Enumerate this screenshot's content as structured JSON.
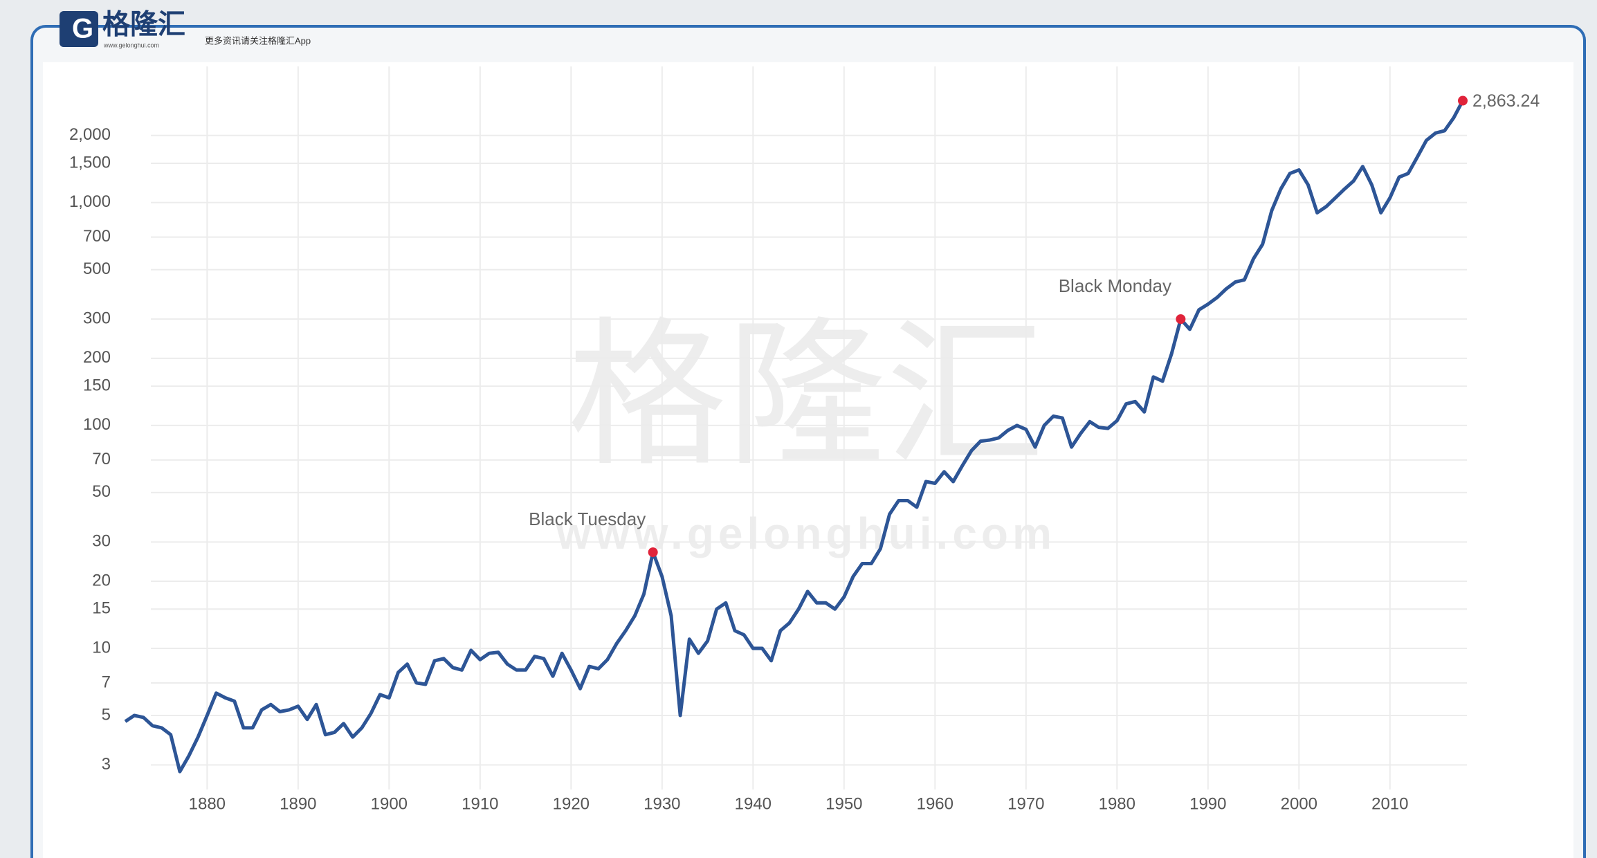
{
  "header": {
    "logo": "格隆汇",
    "logo_sub": "www.gelonghui.com",
    "tagline": "更多资讯请关注格隆汇App"
  },
  "watermark": {
    "text": "格隆汇",
    "url": "www.gelonghui.com"
  },
  "chart_data": {
    "type": "line",
    "color": "#2d5596",
    "marker_color": "#e0233a",
    "log_y": true,
    "grid": true,
    "x": [
      1871,
      1872,
      1873,
      1874,
      1875,
      1876,
      1877,
      1878,
      1879,
      1880,
      1881,
      1882,
      1883,
      1884,
      1885,
      1886,
      1887,
      1888,
      1889,
      1890,
      1891,
      1892,
      1893,
      1894,
      1895,
      1896,
      1897,
      1898,
      1899,
      1900,
      1901,
      1902,
      1903,
      1904,
      1905,
      1906,
      1907,
      1908,
      1909,
      1910,
      1911,
      1912,
      1913,
      1914,
      1915,
      1916,
      1917,
      1918,
      1919,
      1920,
      1921,
      1922,
      1923,
      1924,
      1925,
      1926,
      1927,
      1928,
      1929,
      1930,
      1931,
      1932,
      1933,
      1934,
      1935,
      1936,
      1937,
      1938,
      1939,
      1940,
      1941,
      1942,
      1943,
      1944,
      1945,
      1946,
      1947,
      1948,
      1949,
      1950,
      1951,
      1952,
      1953,
      1954,
      1955,
      1956,
      1957,
      1958,
      1959,
      1960,
      1961,
      1962,
      1963,
      1964,
      1965,
      1966,
      1967,
      1968,
      1969,
      1970,
      1971,
      1972,
      1973,
      1974,
      1975,
      1976,
      1977,
      1978,
      1979,
      1980,
      1981,
      1982,
      1983,
      1984,
      1985,
      1986,
      1987,
      1988,
      1989,
      1990,
      1991,
      1992,
      1993,
      1994,
      1995,
      1996,
      1997,
      1998,
      1999,
      2000,
      2001,
      2002,
      2003,
      2004,
      2005,
      2006,
      2007,
      2008,
      2009,
      2010,
      2011,
      2012,
      2013,
      2014,
      2015,
      2016,
      2017,
      2018
    ],
    "values": [
      4.7,
      5.0,
      4.9,
      4.5,
      4.4,
      4.1,
      2.8,
      3.3,
      4.0,
      5.0,
      6.3,
      6.0,
      5.8,
      4.4,
      4.4,
      5.3,
      5.6,
      5.2,
      5.3,
      5.5,
      4.8,
      5.6,
      4.1,
      4.2,
      4.6,
      4.0,
      4.4,
      5.1,
      6.2,
      6.0,
      7.8,
      8.5,
      7.0,
      6.9,
      8.8,
      9.0,
      8.2,
      8.0,
      9.8,
      8.9,
      9.5,
      9.6,
      8.5,
      8.0,
      8.0,
      9.2,
      9.0,
      7.5,
      9.5,
      8.0,
      6.6,
      8.3,
      8.1,
      8.9,
      10.5,
      12.0,
      14.0,
      17.5,
      27.0,
      21.0,
      14.0,
      5.0,
      11.0,
      9.5,
      10.8,
      15.0,
      16.0,
      12.0,
      11.5,
      10.0,
      10.0,
      8.8,
      12.0,
      13.0,
      15.0,
      18.0,
      16.0,
      16.0,
      15.0,
      17.0,
      21.0,
      24.0,
      24.0,
      28.0,
      40.0,
      46.0,
      46.0,
      43.0,
      56.0,
      55.0,
      62.0,
      56.0,
      66.0,
      77.0,
      85.0,
      86.0,
      88.0,
      95.0,
      100.0,
      96.0,
      80.0,
      100.0,
      110.0,
      108.0,
      80.0,
      92.0,
      104.0,
      98.0,
      97.0,
      105.0,
      125.0,
      128.0,
      115.0,
      165.0,
      158.0,
      210.0,
      300.0,
      270.0,
      330.0,
      350.0,
      375.0,
      410.0,
      440.0,
      450.0,
      560.0,
      650.0,
      920.0,
      1150.0,
      1350.0,
      1400.0,
      1200.0,
      900.0,
      960.0,
      1050.0,
      1150.0,
      1250.0,
      1450.0,
      1200.0,
      900.0,
      1050.0,
      1300.0,
      1350.0,
      1600.0,
      1900.0,
      2050.0,
      2100.0,
      2400.0,
      2863.24
    ],
    "xlim": [
      1871,
      2018
    ],
    "xticks": [
      1880,
      1890,
      1900,
      1910,
      1920,
      1930,
      1940,
      1950,
      1960,
      1970,
      1980,
      1990,
      2000,
      2010
    ],
    "ylim": [
      2.5,
      3000
    ],
    "yticks": [
      3,
      5,
      7,
      10,
      15,
      20,
      30,
      50,
      70,
      100,
      150,
      200,
      300,
      500,
      700,
      {
        "value": 1000,
        "label": "1,000"
      },
      {
        "value": 1500,
        "label": "1,500"
      },
      {
        "value": 2000,
        "label": "2,000"
      }
    ],
    "annotations": [
      {
        "text": "Black Tuesday",
        "x": 1929,
        "y": 27
      },
      {
        "text": "Black Monday",
        "x": 1987,
        "y": 300
      },
      {
        "text": "2,863.24",
        "x": 2018,
        "y": 2863.24
      }
    ]
  }
}
